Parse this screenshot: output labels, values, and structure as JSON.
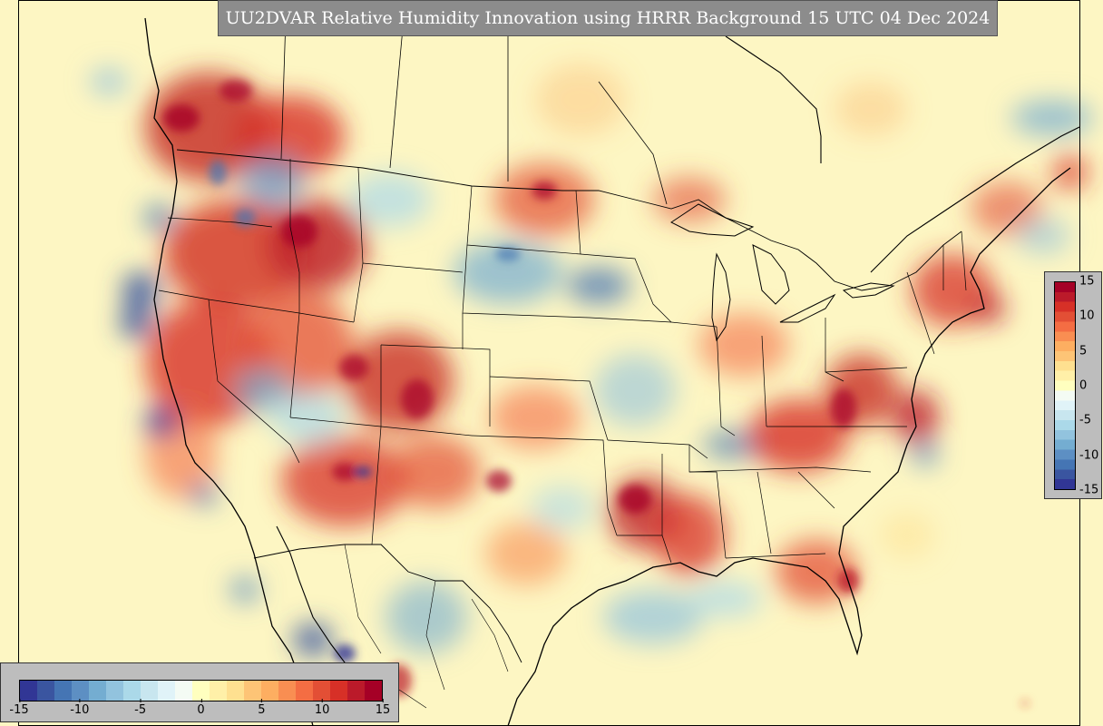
{
  "title": "UU2DVAR Relative Humidity Innovation using HRRR Background 15 UTC 04 Dec 2024",
  "colorbar": {
    "min": -15,
    "max": 15,
    "colors": [
      "#313695",
      "#3a55a0",
      "#4575b4",
      "#5d8fc3",
      "#74add1",
      "#92c3de",
      "#abd9e9",
      "#c8e6ef",
      "#e0f3f8",
      "#f4fbf4",
      "#ffffbf",
      "#fff0a8",
      "#fee090",
      "#fdc476",
      "#fdae61",
      "#f98e52",
      "#f46d43",
      "#e34f35",
      "#d73027",
      "#bb1a2a",
      "#a50026"
    ],
    "horizontal_ticks": [
      "-15",
      "-10",
      "-5",
      "0",
      "5",
      "10",
      "15"
    ],
    "vertical_ticks": [
      "15",
      "10",
      "5",
      "0",
      "-5",
      "-10",
      "-15"
    ]
  },
  "map": {
    "background_color": "#fdf6c3",
    "features": [
      "coastlines",
      "country-borders",
      "state-borders",
      "great-lakes"
    ]
  }
}
